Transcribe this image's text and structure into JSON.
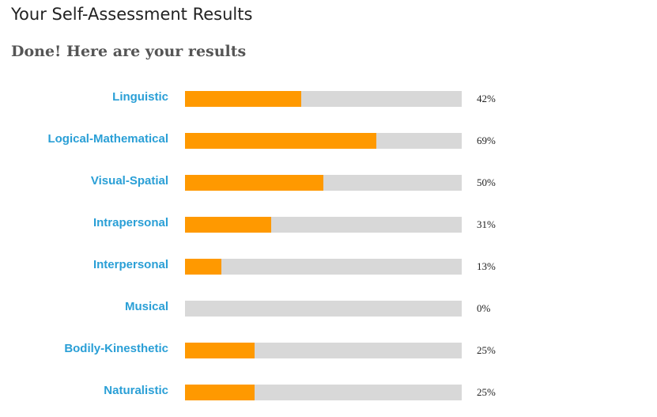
{
  "page": {
    "title": "Your Self-Assessment Results",
    "subtitle": "Done! Here are your results"
  },
  "colors": {
    "label": "#2a9fd6",
    "fill": "#ff9900",
    "track": "#d8d8d8"
  },
  "results": [
    {
      "label": "Linguistic",
      "percent_text": "42%",
      "percent": 42
    },
    {
      "label": "Logical-Mathematical",
      "percent_text": "69%",
      "percent": 69
    },
    {
      "label": "Visual-Spatial",
      "percent_text": "50%",
      "percent": 50
    },
    {
      "label": "Intrapersonal",
      "percent_text": "31%",
      "percent": 31
    },
    {
      "label": "Interpersonal",
      "percent_text": "13%",
      "percent": 13
    },
    {
      "label": "Musical",
      "percent_text": "0%",
      "percent": 0
    },
    {
      "label": "Bodily-Kinesthetic",
      "percent_text": "25%",
      "percent": 25
    },
    {
      "label": "Naturalistic",
      "percent_text": "25%",
      "percent": 25
    }
  ]
}
